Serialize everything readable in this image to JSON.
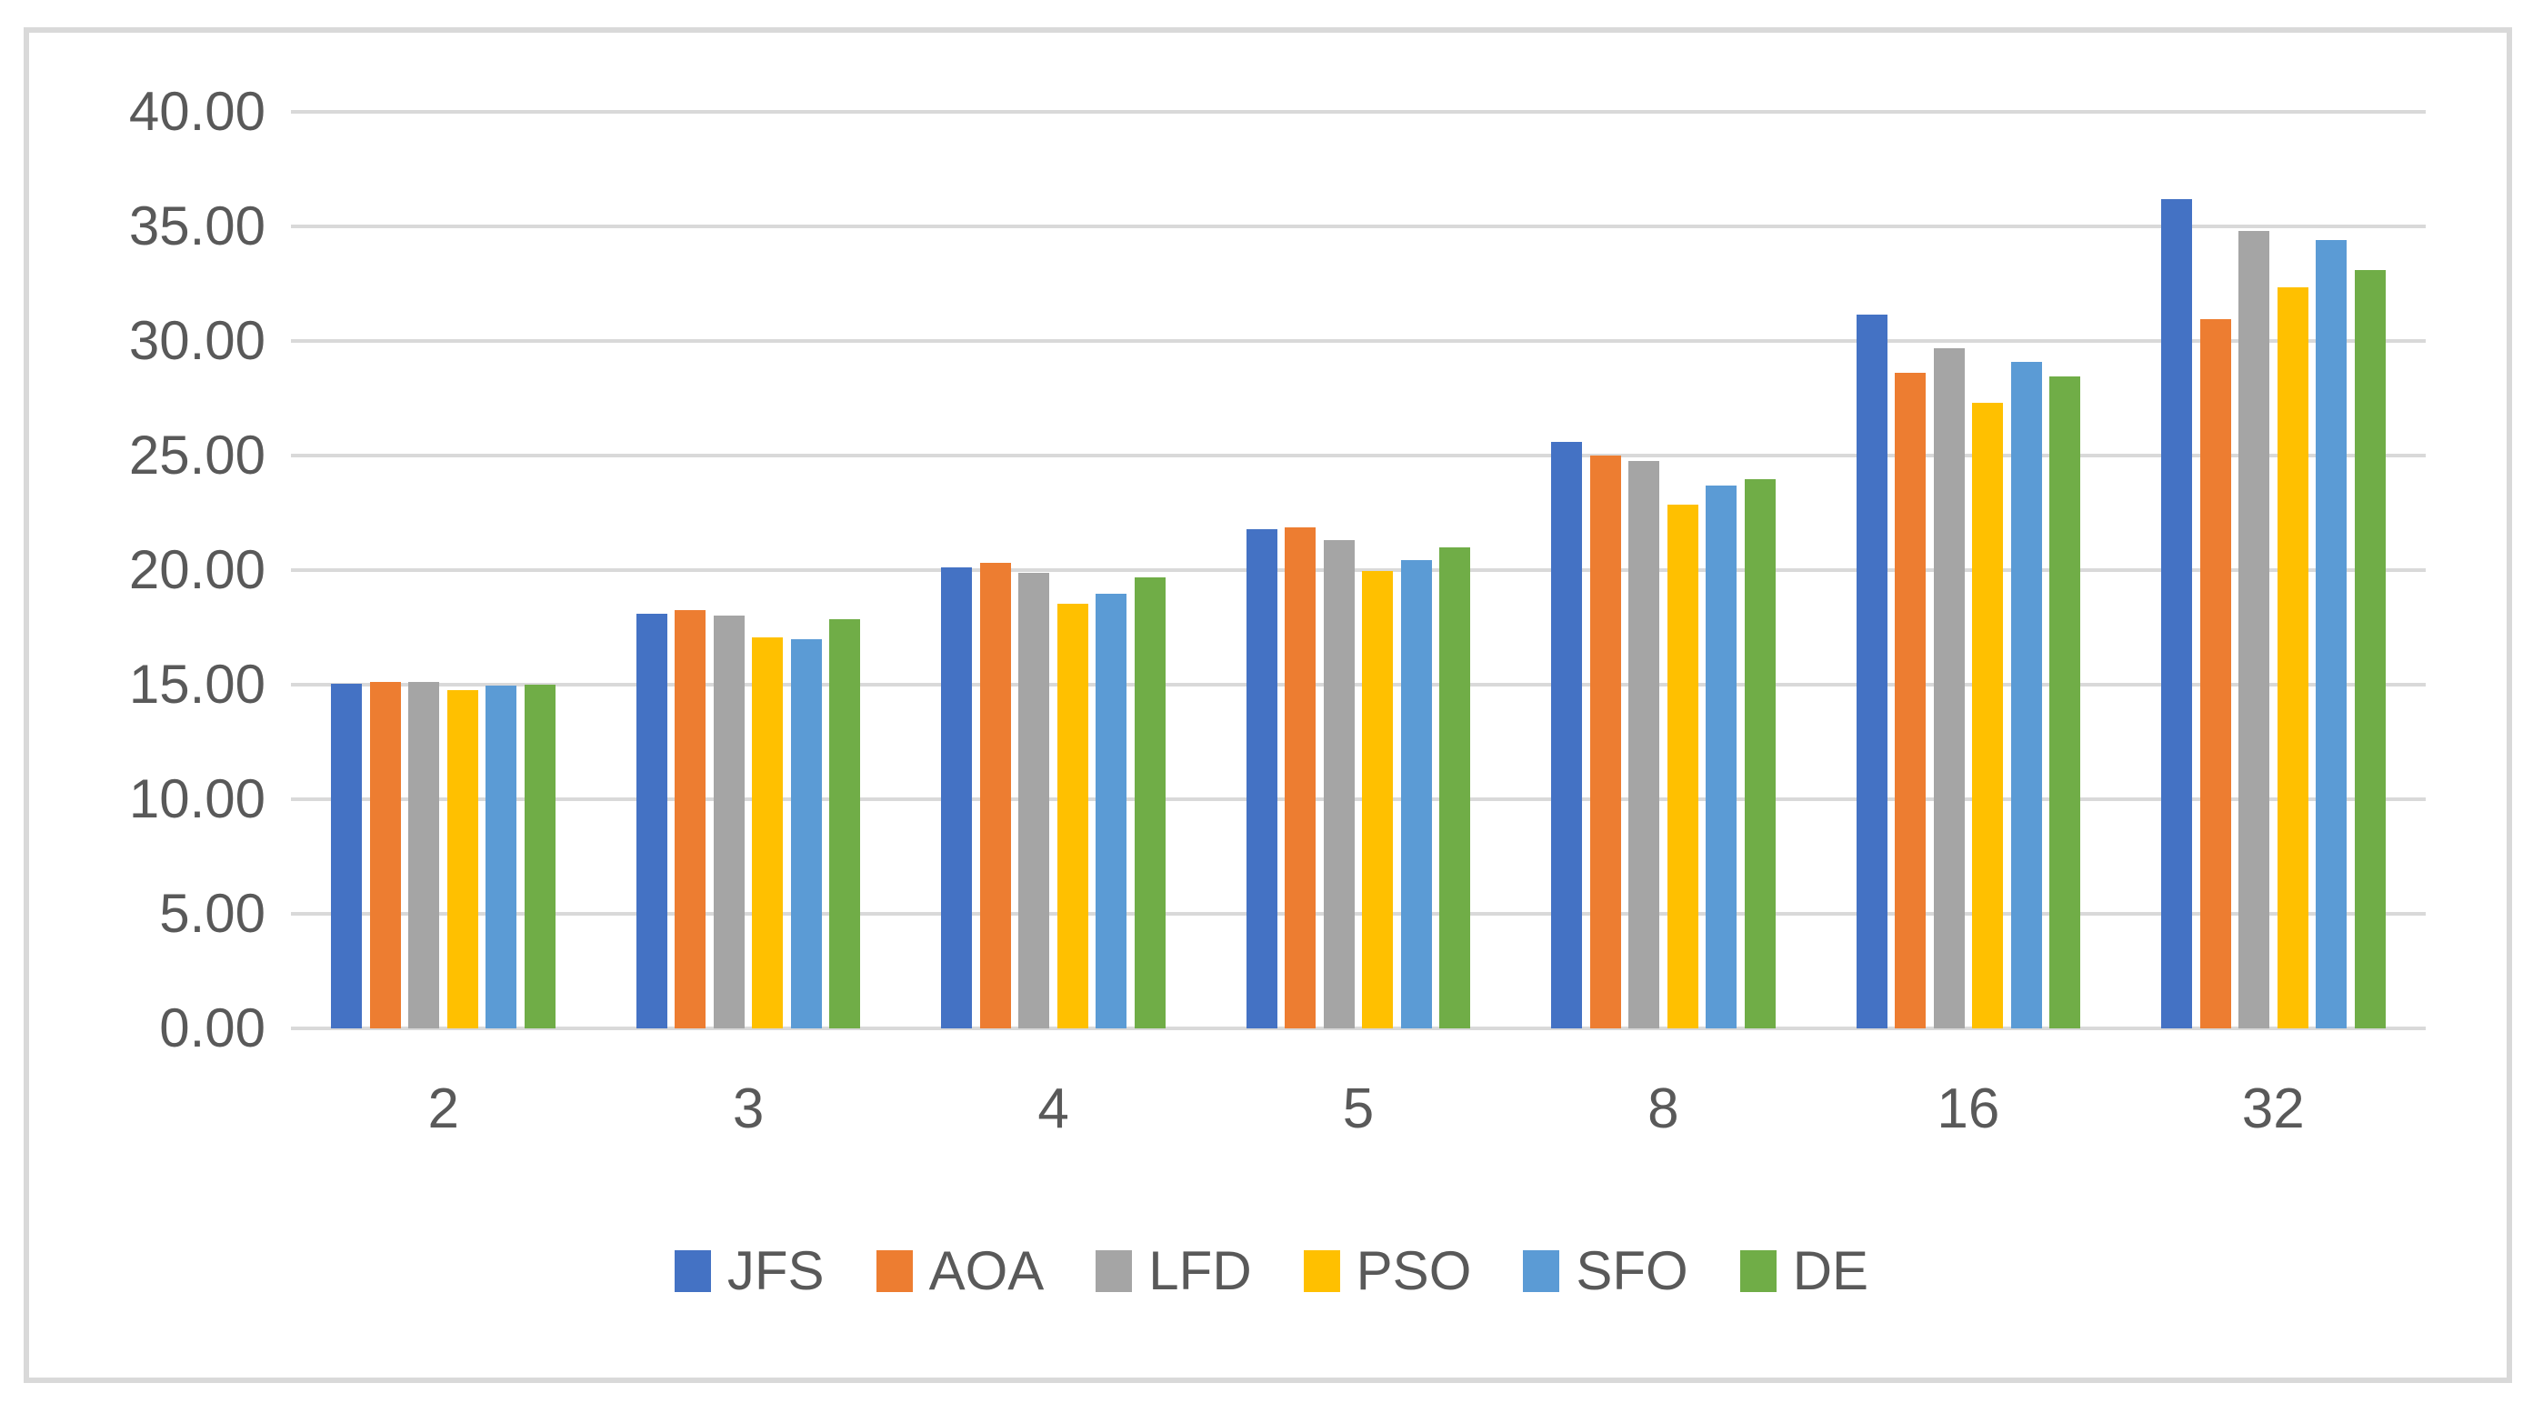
{
  "colors": {
    "background": "#FFFFFF",
    "border": "#D9D9D9",
    "gridline": "#D9D9D9",
    "text": "#595959"
  },
  "chart_data": {
    "type": "bar",
    "title": "",
    "xlabel": "",
    "ylabel": "",
    "categories": [
      "2",
      "3",
      "4",
      "5",
      "8",
      "16",
      "32"
    ],
    "series": [
      {
        "name": "JFS",
        "color": "#4472C4",
        "values": [
          15.05,
          18.1,
          20.1,
          21.8,
          25.6,
          31.15,
          36.2
        ]
      },
      {
        "name": "AOA",
        "color": "#ED7D31",
        "values": [
          15.1,
          18.25,
          20.3,
          21.85,
          25.0,
          28.6,
          30.95
        ]
      },
      {
        "name": "LFD",
        "color": "#A5A5A5",
        "values": [
          15.1,
          18.0,
          19.9,
          21.3,
          24.75,
          29.7,
          34.8
        ]
      },
      {
        "name": "PSO",
        "color": "#FFC000",
        "values": [
          14.75,
          17.05,
          18.55,
          19.95,
          22.85,
          27.3,
          32.35
        ]
      },
      {
        "name": "SFO",
        "color": "#5B9BD5",
        "values": [
          14.95,
          17.0,
          18.95,
          20.45,
          23.7,
          29.1,
          34.4
        ]
      },
      {
        "name": "DE",
        "color": "#70AD47",
        "values": [
          15.0,
          17.85,
          19.7,
          21.0,
          23.95,
          28.45,
          33.1
        ]
      }
    ],
    "ylim": [
      0,
      40
    ],
    "ytick_step": 5,
    "ytick_decimals": 2,
    "grid": "horizontal",
    "legend_position": "bottom",
    "legend_labels": [
      "JFS",
      "AOA",
      "LFD",
      "PSO",
      "SFO",
      "DE"
    ]
  }
}
